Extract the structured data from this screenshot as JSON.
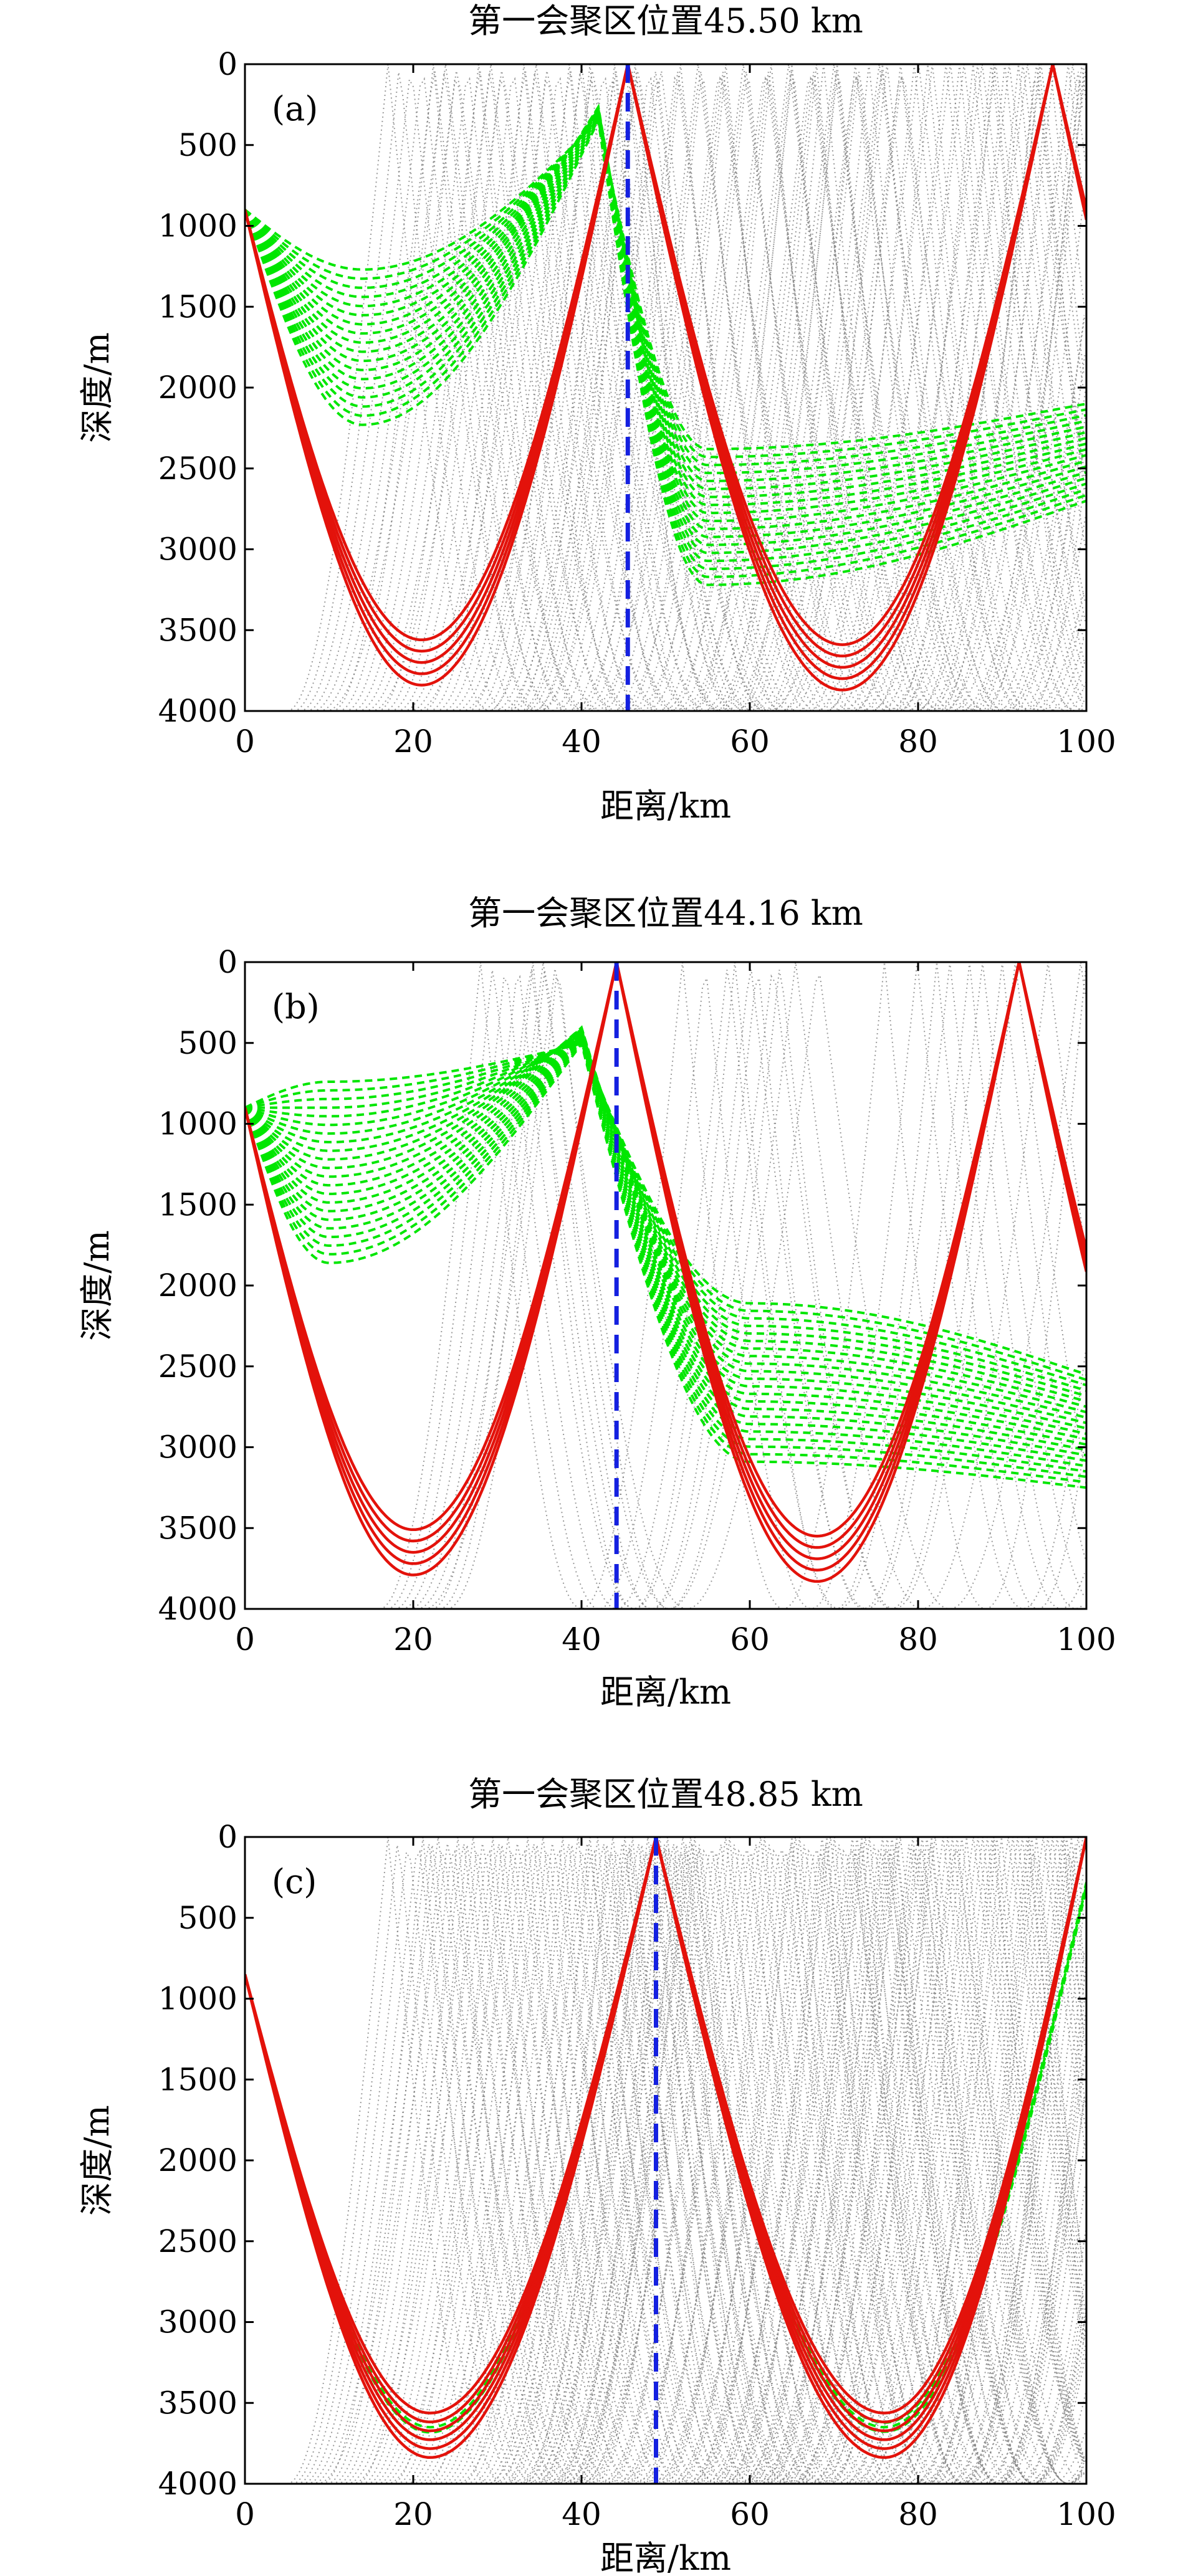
{
  "colors": {
    "ray_gray": "#7a7a7a",
    "ray_green": "#00e600",
    "ray_red": "#e3120b",
    "focus_line": "#1420e0",
    "frame": "#000000"
  },
  "chart_data": [
    {
      "type": "line",
      "panel_label": "(a)",
      "title": "第一会聚区位置45.50 km",
      "xlabel": "距离/km",
      "ylabel": "深度/m",
      "xlim": [
        0,
        100
      ],
      "ylim": [
        4000,
        0
      ],
      "x_ticks": [
        "0",
        "20",
        "40",
        "60",
        "80",
        "100"
      ],
      "y_ticks": [
        "0",
        "500",
        "1000",
        "1500",
        "2000",
        "2500",
        "3000",
        "3500",
        "4000"
      ],
      "convergence_zone_km": 45.5,
      "grid": false,
      "red_rays": {
        "source_depth": 900,
        "cycles": [
          [
            21,
            45.5,
            3700
          ],
          [
            71,
            96,
            3730
          ]
        ],
        "count": 5,
        "spread": 70
      },
      "green_rays": {
        "source_depth": 900,
        "count": 18,
        "spread": 600,
        "cycles": [
          [
            14,
            42,
            1750
          ],
          [
            55,
            98,
            2800
          ]
        ],
        "turn_top": 260,
        "end_depth": 2400
      },
      "gray_rays": {
        "count": 40,
        "spread": 600,
        "start_range": [
          5,
          35
        ]
      }
    },
    {
      "type": "line",
      "panel_label": "(b)",
      "title": "第一会聚区位置44.16 km",
      "xlabel": "距离/km",
      "ylabel": "深度/m",
      "xlim": [
        0,
        100
      ],
      "ylim": [
        4000,
        0
      ],
      "x_ticks": [
        "0",
        "20",
        "40",
        "60",
        "80",
        "100"
      ],
      "y_ticks": [
        "0",
        "500",
        "1000",
        "1500",
        "2000",
        "2500",
        "3000",
        "3500",
        "4000"
      ],
      "convergence_zone_km": 44.16,
      "grid": false,
      "red_rays": {
        "source_depth": 900,
        "cycles": [
          [
            20,
            44.16,
            3650
          ],
          [
            68,
            92,
            3690
          ]
        ],
        "count": 5,
        "spread": 70
      },
      "green_rays": {
        "source_depth": 900,
        "count": 22,
        "spread": 700,
        "cycles": [
          [
            10,
            40,
            1300
          ],
          [
            60,
            100,
            2600
          ]
        ],
        "turn_top": 400,
        "end_depth": 2900
      },
      "gray_rays": {
        "count": 10,
        "spread": 200,
        "start_range": [
          16,
          24
        ]
      }
    },
    {
      "type": "line",
      "panel_label": "(c)",
      "title": "第一会聚区位置48.85 km",
      "xlabel": "距离/km",
      "ylabel": "深度/m",
      "xlim": [
        0,
        100
      ],
      "ylim": [
        4000,
        0
      ],
      "x_ticks": [
        "0",
        "20",
        "40",
        "60",
        "80",
        "100"
      ],
      "y_ticks": [
        "0",
        "500",
        "1000",
        "1500",
        "2000",
        "2500",
        "3000",
        "3500",
        "4000"
      ],
      "convergence_zone_km": 48.85,
      "grid": false,
      "red_rays": {
        "source_depth": 850,
        "cycles": [
          [
            22,
            48.85,
            3700
          ],
          [
            76,
            100,
            3700
          ]
        ],
        "count": 6,
        "spread": 55
      },
      "green_rays": {
        "source_depth": 850,
        "count": 3,
        "spread": 40,
        "cycles": [
          [
            22,
            48.85,
            3650
          ],
          [
            76,
            100,
            3650
          ]
        ],
        "turn_top": 0,
        "end_depth": 300
      },
      "gray_rays": {
        "count": 60,
        "spread": 900,
        "start_range": [
          5,
          40
        ]
      }
    }
  ]
}
